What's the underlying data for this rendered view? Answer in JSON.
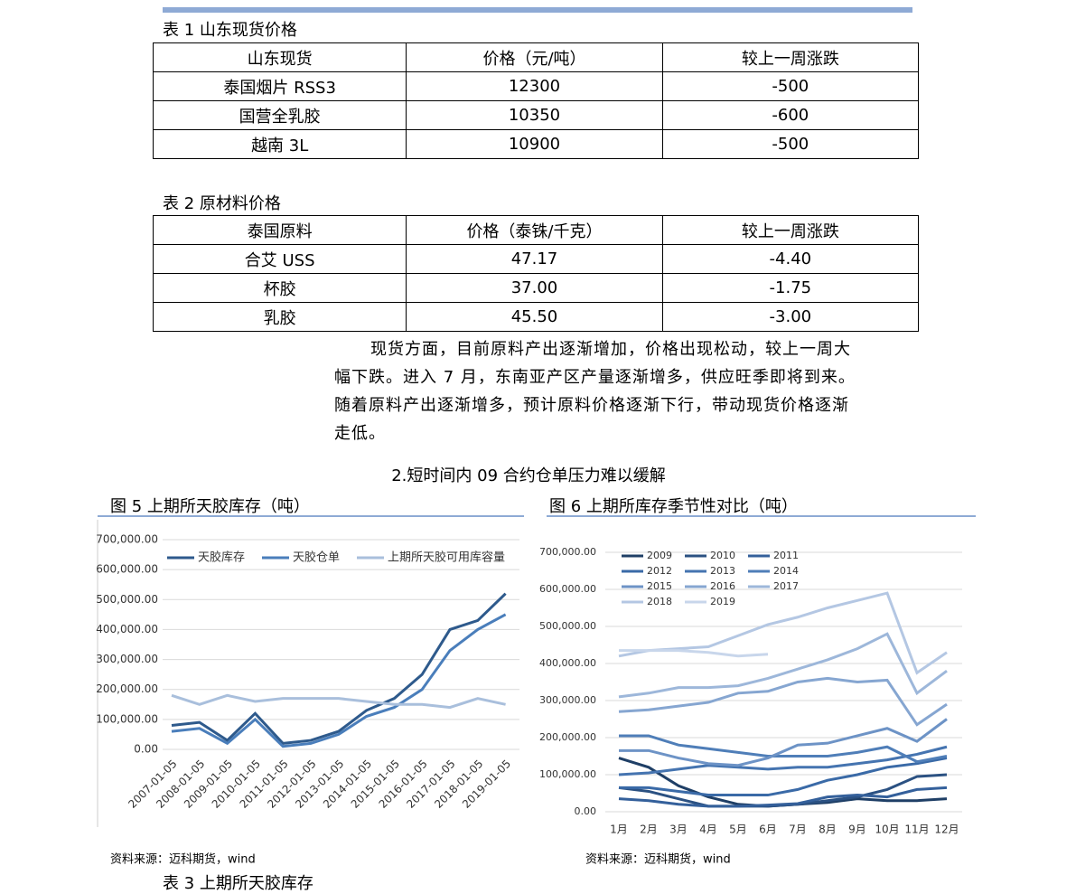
{
  "table1": {
    "caption": "表 1 山东现货价格",
    "header": [
      "山东现货",
      "价格（元/吨）",
      "较上一周涨跌"
    ],
    "rows": [
      [
        "泰国烟片 RSS3",
        "12300",
        "-500"
      ],
      [
        "国营全乳胶",
        "10350",
        "-600"
      ],
      [
        "越南 3L",
        "10900",
        "-500"
      ]
    ]
  },
  "table2": {
    "caption": "表 2 原材料价格",
    "header": [
      "泰国原料",
      "价格（泰铢/千克）",
      "较上一周涨跌"
    ],
    "rows": [
      [
        "合艾 USS",
        "47.17",
        "-4.40"
      ],
      [
        "杯胶",
        "37.00",
        "-1.75"
      ],
      [
        "乳胶",
        "45.50",
        "-3.00"
      ]
    ]
  },
  "paragraph": [
    "现货方面，目前原料产出逐渐增加，价格出现松动，较上一周大",
    "幅下跌。进入 7 月，东南亚产区产量逐渐增多，供应旺季即将到来。",
    "随着原料产出逐渐增多，预计原料价格逐渐下行，带动现货价格逐渐",
    "走低。"
  ],
  "heading": "2.短时间内 09 合约仓单压力难以缓解",
  "next_caption": "表 3 上期所天胶库存",
  "chart_data": [
    {
      "type": "line",
      "title": "图 5 上期所天胶库存（吨）",
      "source": "资料来源：迈科期货，wind",
      "grid": true,
      "legend": "top",
      "x": [
        "2007-01-05",
        "2008-01-05",
        "2009-01-05",
        "2010-01-05",
        "2011-01-05",
        "2012-01-05",
        "2013-01-05",
        "2014-01-05",
        "2015-01-05",
        "2016-01-05",
        "2017-01-05",
        "2018-01-05",
        "2019-01-05"
      ],
      "ylim": [
        0,
        700000
      ],
      "yticks": [
        {
          "value": 0,
          "label": "0.00"
        },
        {
          "value": 100000,
          "label": "100,000.00"
        },
        {
          "value": 200000,
          "label": "200,000.00"
        },
        {
          "value": 300000,
          "label": "300,000.00"
        },
        {
          "value": 400000,
          "label": "400,000.00"
        },
        {
          "value": 500000,
          "label": "500,000.00"
        },
        {
          "value": 600000,
          "label": "600,000.00"
        },
        {
          "value": 700000,
          "label": "700,000.00"
        }
      ],
      "series": [
        {
          "name": "天胶库存",
          "color": "#2e5a8c",
          "values": [
            80000,
            90000,
            30000,
            120000,
            20000,
            30000,
            60000,
            130000,
            170000,
            250000,
            400000,
            430000,
            520000
          ]
        },
        {
          "name": "天胶仓单",
          "color": "#4a7ebb",
          "values": [
            60000,
            70000,
            20000,
            100000,
            10000,
            20000,
            50000,
            110000,
            140000,
            200000,
            330000,
            400000,
            450000
          ]
        },
        {
          "name": "上期所天胶可用库容量",
          "color": "#a9bfdc",
          "values": [
            180000,
            150000,
            180000,
            160000,
            170000,
            170000,
            170000,
            160000,
            150000,
            150000,
            140000,
            170000,
            150000
          ]
        }
      ]
    },
    {
      "type": "line",
      "title": "图 6 上期所库存季节性对比（吨）",
      "source": "资料来源：迈科期货，wind",
      "grid": true,
      "legend": "top-left",
      "categories": [
        "1月",
        "2月",
        "3月",
        "4月",
        "5月",
        "6月",
        "7月",
        "8月",
        "9月",
        "10月",
        "11月",
        "12月"
      ],
      "ylim": [
        0,
        700000
      ],
      "yticks": [
        {
          "value": 0,
          "label": "0.00"
        },
        {
          "value": 100000,
          "label": "100,000.00"
        },
        {
          "value": 200000,
          "label": "200,000.00"
        },
        {
          "value": 300000,
          "label": "300,000.00"
        },
        {
          "value": 400000,
          "label": "400,000.00"
        },
        {
          "value": 500000,
          "label": "500,000.00"
        },
        {
          "value": 600000,
          "label": "600,000.00"
        },
        {
          "value": 700000,
          "label": "700,000.00"
        }
      ],
      "series": [
        {
          "name": "2009",
          "color": "#1f3f66",
          "values": [
            145000,
            120000,
            70000,
            40000,
            20000,
            15000,
            20000,
            25000,
            35000,
            30000,
            30000,
            35000
          ]
        },
        {
          "name": "2010",
          "color": "#2b5182",
          "values": [
            65000,
            55000,
            35000,
            15000,
            15000,
            15000,
            20000,
            30000,
            40000,
            60000,
            95000,
            100000
          ]
        },
        {
          "name": "2011",
          "color": "#34609b",
          "values": [
            35000,
            30000,
            20000,
            15000,
            15000,
            18000,
            22000,
            40000,
            45000,
            40000,
            60000,
            65000
          ]
        },
        {
          "name": "2012",
          "color": "#3a6aa7",
          "values": [
            65000,
            65000,
            55000,
            45000,
            45000,
            45000,
            60000,
            85000,
            100000,
            120000,
            130000,
            145000
          ]
        },
        {
          "name": "2013",
          "color": "#4574b0",
          "values": [
            100000,
            105000,
            115000,
            125000,
            120000,
            115000,
            120000,
            120000,
            130000,
            140000,
            155000,
            175000
          ]
        },
        {
          "name": "2014",
          "color": "#4f7eb8",
          "values": [
            205000,
            205000,
            180000,
            170000,
            160000,
            150000,
            150000,
            150000,
            160000,
            175000,
            135000,
            150000
          ]
        },
        {
          "name": "2015",
          "color": "#6d93c6",
          "values": [
            165000,
            165000,
            145000,
            130000,
            125000,
            145000,
            180000,
            185000,
            205000,
            225000,
            190000,
            250000
          ]
        },
        {
          "name": "2016",
          "color": "#86a6d1",
          "values": [
            270000,
            275000,
            285000,
            295000,
            320000,
            325000,
            350000,
            360000,
            350000,
            355000,
            235000,
            290000
          ]
        },
        {
          "name": "2017",
          "color": "#9db7da",
          "values": [
            310000,
            320000,
            335000,
            335000,
            340000,
            360000,
            385000,
            410000,
            440000,
            480000,
            320000,
            380000
          ]
        },
        {
          "name": "2018",
          "color": "#b4c7e3",
          "values": [
            420000,
            435000,
            440000,
            445000,
            475000,
            505000,
            525000,
            550000,
            570000,
            590000,
            375000,
            430000
          ]
        },
        {
          "name": "2019",
          "color": "#c8d6eb",
          "values": [
            435000,
            435000,
            435000,
            430000,
            420000,
            425000,
            null,
            null,
            null,
            null,
            null,
            null
          ]
        }
      ]
    }
  ]
}
